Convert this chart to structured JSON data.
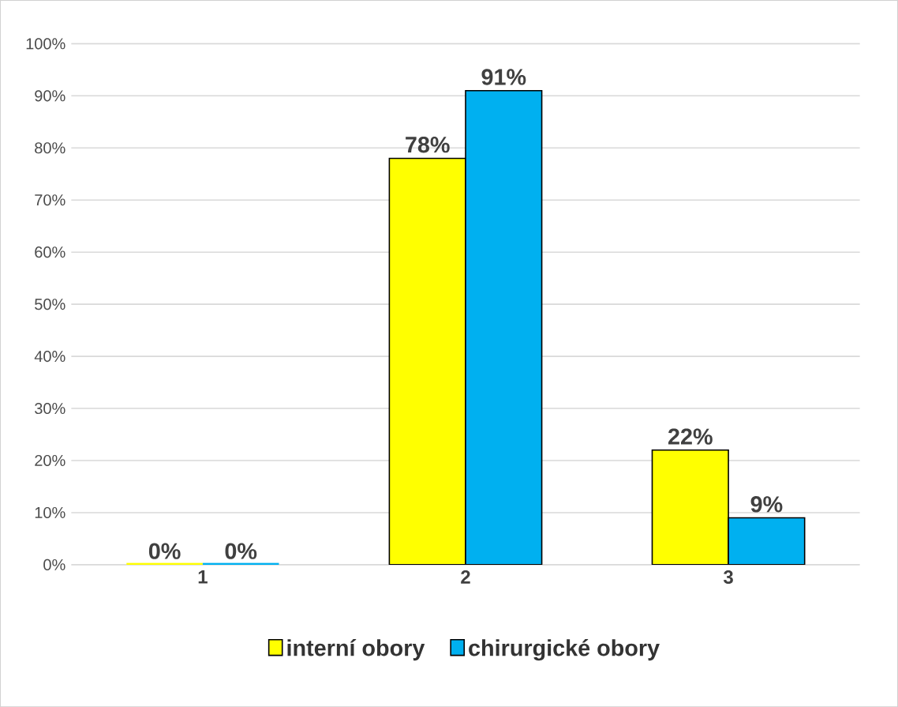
{
  "chart_data": {
    "type": "bar",
    "categories": [
      "1",
      "2",
      "3"
    ],
    "series": [
      {
        "name": "interní obory",
        "color": "#ffff00",
        "values": [
          0,
          78,
          22
        ],
        "value_labels": [
          "0%",
          "78%",
          "22%"
        ]
      },
      {
        "name": "chirurgické obory",
        "color": "#00b0f0",
        "values": [
          0,
          91,
          9
        ],
        "value_labels": [
          "0%",
          "91%",
          "9%"
        ]
      }
    ],
    "ylim": [
      0,
      100
    ],
    "yticks": [
      {
        "value": 0,
        "label": "0%"
      },
      {
        "value": 10,
        "label": "10%"
      },
      {
        "value": 20,
        "label": "20%"
      },
      {
        "value": 30,
        "label": "30%"
      },
      {
        "value": 40,
        "label": "40%"
      },
      {
        "value": 50,
        "label": "50%"
      },
      {
        "value": 60,
        "label": "60%"
      },
      {
        "value": 70,
        "label": "70%"
      },
      {
        "value": 80,
        "label": "80%"
      },
      {
        "value": 90,
        "label": "90%"
      },
      {
        "value": 100,
        "label": "100%"
      }
    ],
    "grid": "y",
    "legend": "bottom"
  }
}
